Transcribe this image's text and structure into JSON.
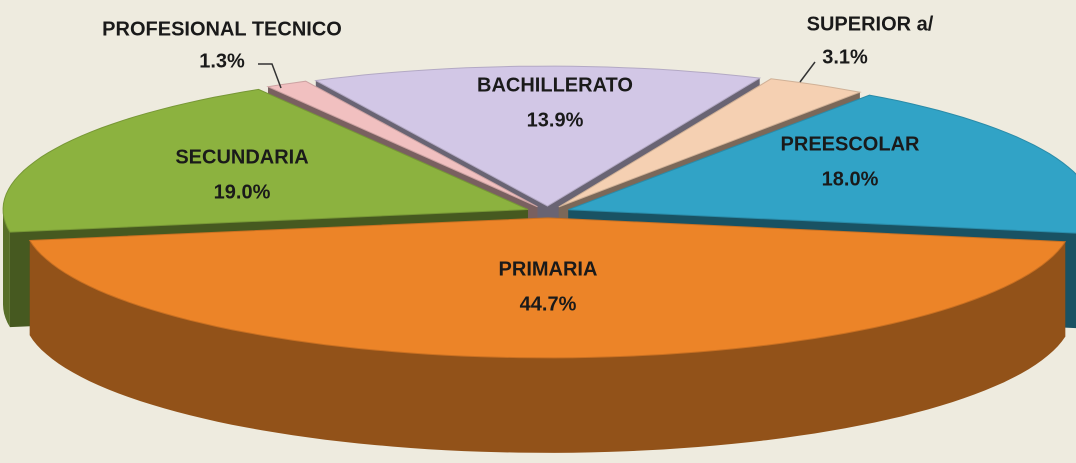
{
  "chart_data": {
    "type": "pie",
    "categories": [
      "PREESCOLAR",
      "PRIMARIA",
      "SECUNDARIA",
      "PROFESIONAL TECNICO",
      "BACHILLERATO",
      "SUPERIOR a/"
    ],
    "values": [
      18.0,
      44.7,
      19.0,
      1.3,
      13.9,
      3.1
    ],
    "value_labels": [
      "18.0%",
      "44.7%",
      "19.0%",
      "1.3%",
      "13.9%",
      "3.1%"
    ],
    "colors": [
      "#31a3c6",
      "#ec8428",
      "#8cb23f",
      "#f1c0c0",
      "#d2c7e6",
      "#f5d0b2"
    ]
  }
}
